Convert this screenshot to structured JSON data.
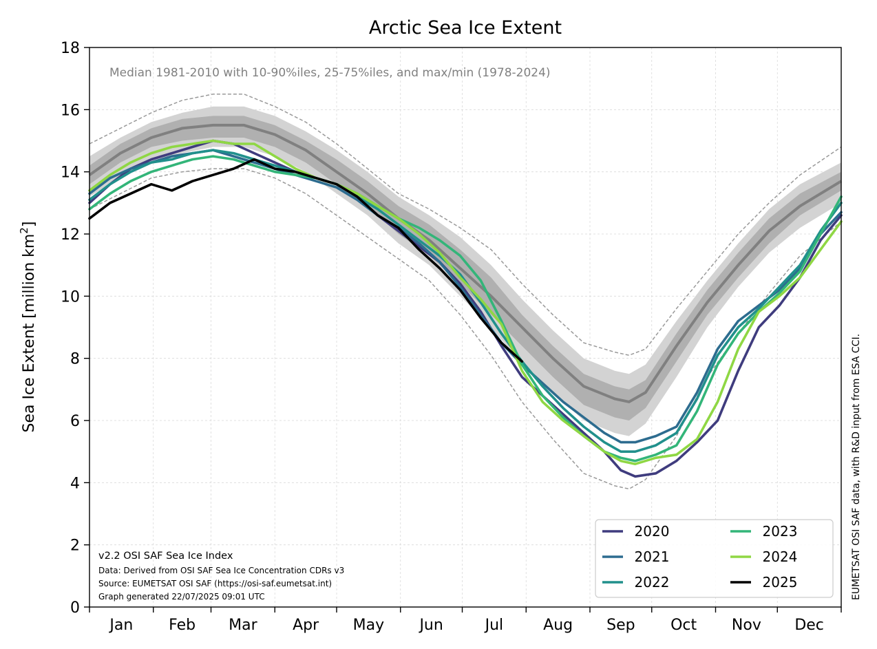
{
  "chart_data": {
    "type": "line",
    "title": "Arctic Sea Ice Extent",
    "subtitle": "Median 1981-2010 with 10-90%iles, 25-75%iles, and max/min (1978-2024)",
    "ylabel": "Sea Ice Extent [million km²]",
    "ylabel_main": "Sea Ice Extent [million km",
    "ylabel_sup": "2",
    "ylabel_end": "]",
    "ylim": [
      0,
      18
    ],
    "y_ticks": [
      0,
      2,
      4,
      6,
      8,
      10,
      12,
      14,
      16,
      18
    ],
    "xlim": [
      0,
      365
    ],
    "month_labels": [
      "Jan",
      "Feb",
      "Mar",
      "Apr",
      "May",
      "Jun",
      "Jul",
      "Aug",
      "Sep",
      "Oct",
      "Nov",
      "Dec"
    ],
    "grid": true,
    "legend_position": "bottom-right",
    "credit": "EUMETSAT OSI SAF data, with R&D input from ESA CCI.",
    "notes": [
      "v2.2 OSI SAF Sea Ice Index",
      "Data: Derived from OSI SAF Sea Ice Concentration CDRs v3",
      "Source: EUMETSAT OSI SAF (https://osi-saf.eumetsat.int)",
      "Graph generated 22/07/2025 09:01 UTC"
    ],
    "climatology": {
      "x_day": [
        0,
        15,
        30,
        45,
        60,
        75,
        90,
        105,
        120,
        135,
        150,
        165,
        180,
        195,
        210,
        225,
        240,
        255,
        262,
        270,
        285,
        300,
        315,
        330,
        345,
        365
      ],
      "max": [
        14.9,
        15.4,
        15.9,
        16.3,
        16.5,
        16.5,
        16.1,
        15.6,
        14.9,
        14.1,
        13.3,
        12.8,
        12.2,
        11.5,
        10.4,
        9.4,
        8.5,
        8.2,
        8.1,
        8.3,
        9.6,
        10.8,
        12.0,
        13.0,
        13.9,
        14.8
      ],
      "p90": [
        14.5,
        15.1,
        15.6,
        15.9,
        16.1,
        16.1,
        15.8,
        15.3,
        14.7,
        14.0,
        13.2,
        12.6,
        11.9,
        11.0,
        9.9,
        8.9,
        8.0,
        7.6,
        7.5,
        7.8,
        9.2,
        10.5,
        11.7,
        12.8,
        13.6,
        14.3
      ],
      "p75": [
        14.2,
        14.9,
        15.4,
        15.7,
        15.8,
        15.8,
        15.5,
        15.0,
        14.4,
        13.7,
        12.9,
        12.3,
        11.5,
        10.6,
        9.4,
        8.4,
        7.5,
        7.1,
        7.0,
        7.3,
        8.8,
        10.2,
        11.4,
        12.5,
        13.3,
        14.0
      ],
      "median": [
        13.9,
        14.6,
        15.1,
        15.4,
        15.5,
        15.5,
        15.2,
        14.7,
        14.0,
        13.3,
        12.5,
        11.8,
        10.9,
        10.0,
        9.0,
        8.0,
        7.1,
        6.7,
        6.6,
        6.9,
        8.4,
        9.8,
        11.0,
        12.1,
        12.9,
        13.7
      ],
      "p25": [
        13.6,
        14.3,
        14.8,
        15.0,
        15.1,
        15.1,
        14.8,
        14.3,
        13.6,
        12.9,
        12.0,
        11.3,
        10.4,
        9.4,
        8.4,
        7.4,
        6.5,
        6.1,
        6.0,
        6.4,
        7.9,
        9.4,
        10.6,
        11.7,
        12.6,
        13.4
      ],
      "p10": [
        13.2,
        13.8,
        14.3,
        14.6,
        14.8,
        14.8,
        14.5,
        14.0,
        13.3,
        12.6,
        11.7,
        11.0,
        10.0,
        9.0,
        7.8,
        6.9,
        6.0,
        5.6,
        5.5,
        5.9,
        7.4,
        9.0,
        10.3,
        11.4,
        12.2,
        13.0
      ],
      "min": [
        12.8,
        13.3,
        13.8,
        14.0,
        14.1,
        14.1,
        13.8,
        13.3,
        12.6,
        11.9,
        11.2,
        10.5,
        9.4,
        8.1,
        6.6,
        5.4,
        4.3,
        3.9,
        3.8,
        4.1,
        5.5,
        7.4,
        8.8,
        10.1,
        11.3,
        12.4
      ]
    },
    "x_day": [
      0,
      10,
      20,
      30,
      40,
      50,
      60,
      70,
      80,
      90,
      100,
      110,
      120,
      130,
      140,
      150,
      160,
      170,
      180,
      190,
      200,
      210,
      220,
      230,
      240,
      250,
      258,
      265,
      275,
      285,
      295,
      305,
      315,
      325,
      335,
      345,
      355,
      365
    ],
    "series": [
      {
        "name": "2020",
        "color": "#3f3c7e",
        "values": [
          13.0,
          13.6,
          14.1,
          14.4,
          14.6,
          14.8,
          15.0,
          14.9,
          14.6,
          14.3,
          14.0,
          13.8,
          13.6,
          13.2,
          12.6,
          12.1,
          11.6,
          11.1,
          10.4,
          9.5,
          8.4,
          7.4,
          6.8,
          6.2,
          5.6,
          5.0,
          4.4,
          4.2,
          4.3,
          4.7,
          5.3,
          6.0,
          7.6,
          9.0,
          9.7,
          10.6,
          11.8,
          12.6
        ]
      },
      {
        "name": "2021",
        "color": "#2d6c8f",
        "values": [
          13.3,
          13.8,
          14.1,
          14.3,
          14.5,
          14.6,
          14.7,
          14.5,
          14.3,
          14.1,
          13.9,
          13.7,
          13.5,
          13.1,
          12.6,
          12.2,
          11.7,
          11.1,
          10.3,
          9.4,
          8.5,
          7.8,
          7.2,
          6.6,
          6.1,
          5.6,
          5.3,
          5.3,
          5.5,
          5.8,
          6.9,
          8.3,
          9.2,
          9.7,
          10.2,
          10.9,
          12.0,
          12.7
        ]
      },
      {
        "name": "2022",
        "color": "#21908c",
        "values": [
          13.1,
          13.6,
          14.0,
          14.3,
          14.4,
          14.6,
          14.7,
          14.6,
          14.4,
          14.2,
          14.0,
          13.8,
          13.6,
          13.2,
          12.8,
          12.3,
          11.8,
          11.3,
          10.7,
          9.8,
          8.8,
          7.9,
          7.1,
          6.4,
          5.8,
          5.3,
          5.0,
          5.0,
          5.2,
          5.6,
          6.7,
          8.1,
          9.0,
          9.6,
          10.3,
          11.0,
          12.1,
          13.0
        ]
      },
      {
        "name": "2023",
        "color": "#33b579",
        "values": [
          12.8,
          13.3,
          13.7,
          14.0,
          14.2,
          14.4,
          14.5,
          14.4,
          14.2,
          14.0,
          13.9,
          13.8,
          13.6,
          13.3,
          12.9,
          12.5,
          12.2,
          11.8,
          11.3,
          10.5,
          9.2,
          7.8,
          6.8,
          6.1,
          5.5,
          5.0,
          4.8,
          4.7,
          4.9,
          5.2,
          6.3,
          7.8,
          8.8,
          9.5,
          10.1,
          10.8,
          12.0,
          13.2
        ]
      },
      {
        "name": "2024",
        "color": "#8fd744",
        "values": [
          13.4,
          13.9,
          14.3,
          14.6,
          14.8,
          14.9,
          15.0,
          14.9,
          14.9,
          14.5,
          14.1,
          13.8,
          13.6,
          13.3,
          12.9,
          12.5,
          12.0,
          11.4,
          10.6,
          9.9,
          9.1,
          7.6,
          6.6,
          6.0,
          5.5,
          5.0,
          4.7,
          4.6,
          4.8,
          4.9,
          5.4,
          6.6,
          8.3,
          9.5,
          10.0,
          10.6,
          11.5,
          12.4
        ]
      },
      {
        "name": "2025",
        "color": "#000000",
        "values": [
          12.5,
          13.0,
          13.3,
          13.6,
          13.4,
          13.7,
          13.9,
          14.1,
          14.4,
          14.1,
          14.0,
          13.8,
          13.6,
          13.2,
          12.6,
          12.2,
          11.5,
          10.9,
          10.2,
          9.3,
          8.5,
          7.9,
          null,
          null,
          null,
          null,
          null,
          null,
          null,
          null,
          null,
          null,
          null,
          null,
          null,
          null,
          null,
          null
        ]
      }
    ]
  }
}
